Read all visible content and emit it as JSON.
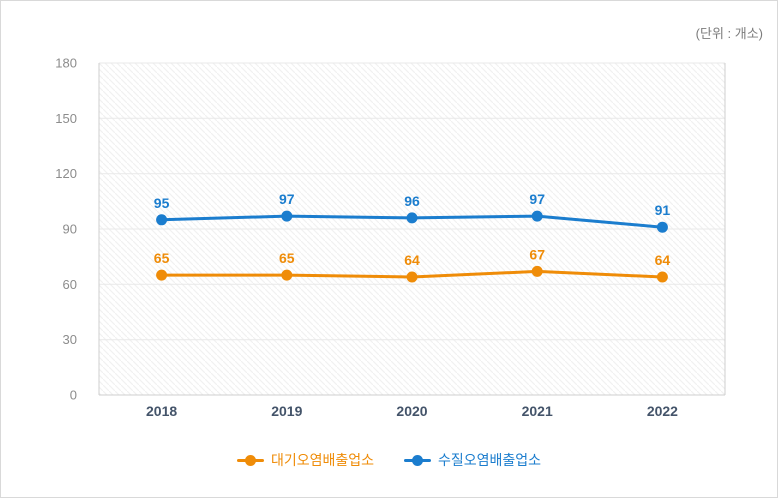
{
  "unit_label": "(단위 : 개소)",
  "chart_data": {
    "type": "line",
    "title": "",
    "xlabel": "",
    "ylabel": "",
    "categories": [
      "2018",
      "2019",
      "2020",
      "2021",
      "2022"
    ],
    "series": [
      {
        "name": "대기오염배출업소",
        "color": "#ef8c08",
        "values": [
          65,
          65,
          64,
          67,
          64
        ]
      },
      {
        "name": "수질오염배출업소",
        "color": "#1b7dce",
        "values": [
          95,
          97,
          96,
          97,
          91
        ]
      }
    ],
    "ylim": [
      0,
      180
    ],
    "yticks": [
      0,
      30,
      60,
      90,
      120,
      150,
      180
    ],
    "grid": true,
    "plot_background": "diagonal-hatch",
    "legend_position": "bottom",
    "value_labels": true
  },
  "style_colors": {
    "grid_line": "#e9e9e9",
    "axis_border": "#cfcfcf",
    "ytick_text": "#8c8c8c",
    "xtick_text": "#44546a",
    "unit_text": "#7c7c7c"
  }
}
